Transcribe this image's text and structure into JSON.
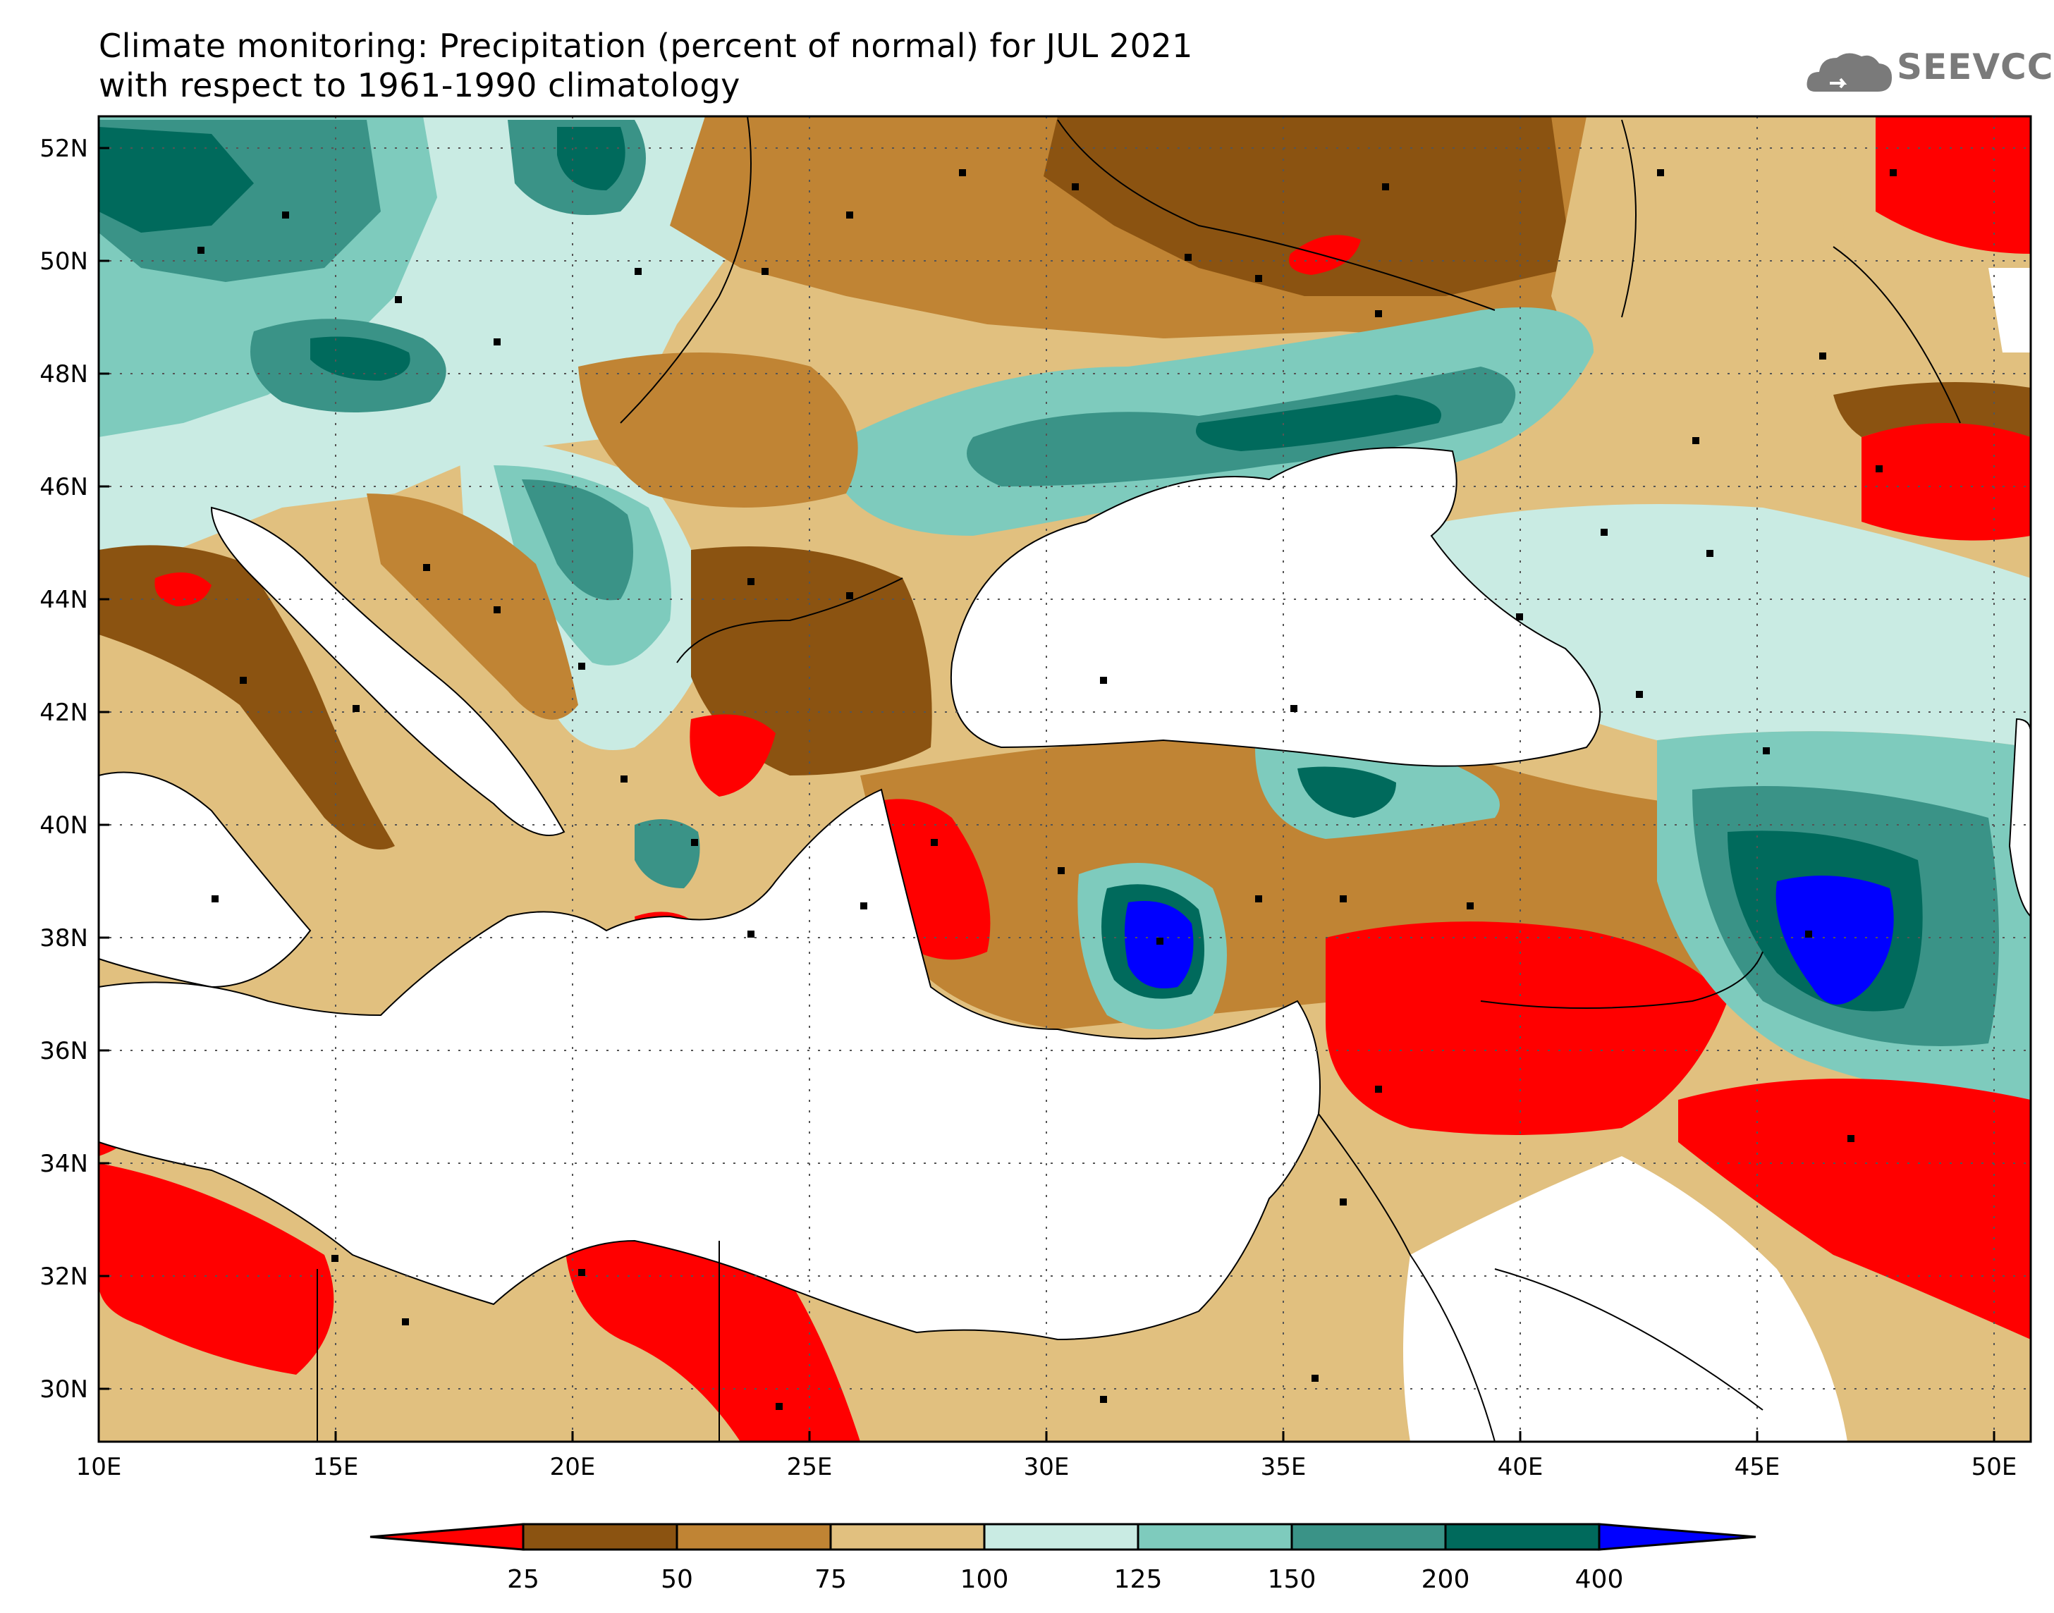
{
  "title_line1": "Climate monitoring: Precipitation (percent of normal) for JUL 2021",
  "title_line2": "with respect to 1961-1990 climatology",
  "logo_text": "SEEVCCC",
  "axes": {
    "lon_ticks": [
      "10E",
      "15E",
      "20E",
      "25E",
      "30E",
      "35E",
      "40E",
      "45E",
      "50E"
    ],
    "lat_ticks": [
      "52N",
      "50N",
      "48N",
      "46N",
      "44N",
      "42N",
      "40N",
      "38N",
      "36N",
      "34N",
      "32N",
      "30N"
    ]
  },
  "colorbar": {
    "colors": [
      "#ff0000",
      "#8b5311",
      "#c08434",
      "#e1c07f",
      "#c9ebe3",
      "#7ecbbd",
      "#3a9387",
      "#006a5c",
      "#0000ff"
    ],
    "labels": [
      "25",
      "50",
      "75",
      "100",
      "125",
      "150",
      "200",
      "400"
    ]
  },
  "palette": {
    "sea": "#ffffff",
    "lt25": "#ff0000",
    "p25_50": "#8b5311",
    "p50_75": "#c08434",
    "p75_100": "#e1c07f",
    "p100_125": "#c9ebe3",
    "p125_150": "#7ecbbd",
    "p150_200": "#3a9387",
    "p200_400": "#006a5c",
    "gt400": "#0000ff"
  }
}
